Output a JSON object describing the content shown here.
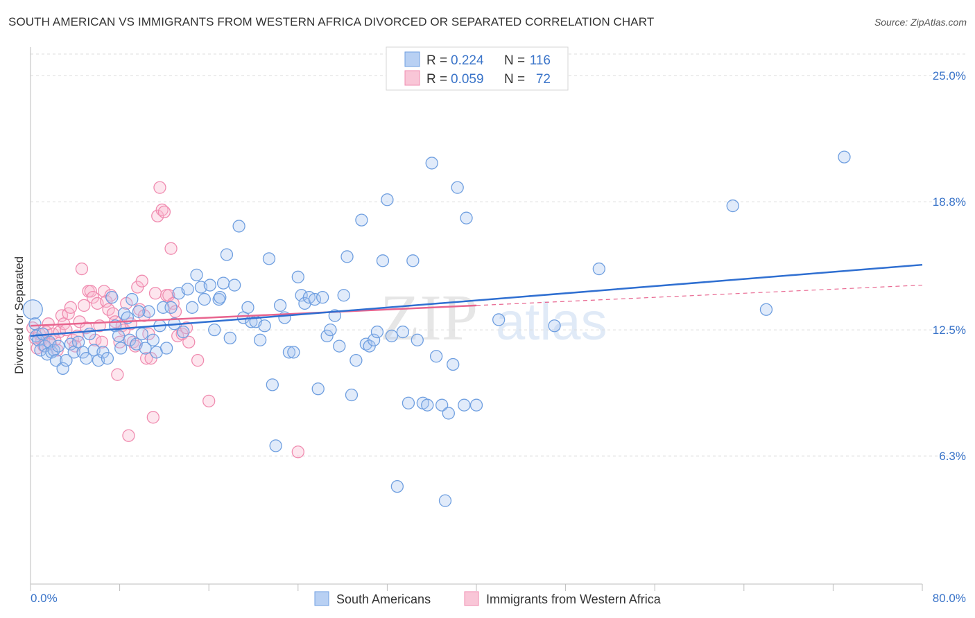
{
  "title": "SOUTH AMERICAN VS IMMIGRANTS FROM WESTERN AFRICA DIVORCED OR SEPARATED CORRELATION CHART",
  "source": "Source: ZipAtlas.com",
  "colors": {
    "blue": "#6f9fe0",
    "blue_line": "#2f6fd1",
    "pink": "#f08cb0",
    "pink_line": "#e8658f",
    "tick": "#3a74c9"
  },
  "legend": {
    "r_label": "R =",
    "n_label": "N =",
    "rows": [
      {
        "r": "0.224",
        "n": "116"
      },
      {
        "r": "0.059",
        "n": "72"
      }
    ]
  },
  "chart_data": {
    "type": "scatter",
    "title": "SOUTH AMERICAN VS IMMIGRANTS FROM WESTERN AFRICA DIVORCED OR SEPARATED CORRELATION CHART",
    "ylabel": "Divorced or Separated",
    "xlabel": "",
    "xlim": [
      0,
      80
    ],
    "ylim": [
      0,
      26.2
    ],
    "x_tick_labels": [
      "0.0%",
      "80.0%"
    ],
    "y_ticks": [
      {
        "value": 25.0,
        "label": "25.0%"
      },
      {
        "value": 18.8,
        "label": "18.8%"
      },
      {
        "value": 12.5,
        "label": "12.5%"
      },
      {
        "value": 6.3,
        "label": "6.3%"
      }
    ],
    "series": [
      {
        "name": "South Americans",
        "color": "#6f9fe0",
        "trend": {
          "x": [
            0,
            80
          ],
          "y": [
            12.2,
            15.7
          ]
        },
        "points": [
          [
            0.2,
            13.5
          ],
          [
            0.4,
            12.8
          ],
          [
            0.5,
            12.2
          ],
          [
            0.7,
            12.0
          ],
          [
            0.9,
            11.5
          ],
          [
            1.1,
            12.3
          ],
          [
            1.3,
            11.7
          ],
          [
            1.5,
            11.3
          ],
          [
            1.7,
            11.9
          ],
          [
            1.9,
            11.4
          ],
          [
            2.1,
            11.5
          ],
          [
            2.3,
            11.0
          ],
          [
            2.5,
            11.7
          ],
          [
            2.9,
            10.6
          ],
          [
            3.2,
            11.0
          ],
          [
            3.6,
            11.8
          ],
          [
            3.9,
            11.4
          ],
          [
            4.3,
            11.9
          ],
          [
            4.7,
            11.4
          ],
          [
            5.0,
            11.1
          ],
          [
            5.3,
            12.3
          ],
          [
            5.7,
            11.5
          ],
          [
            6.1,
            11.0
          ],
          [
            6.5,
            11.4
          ],
          [
            6.9,
            11.1
          ],
          [
            7.3,
            14.1
          ],
          [
            7.6,
            12.7
          ],
          [
            7.9,
            12.2
          ],
          [
            8.1,
            11.6
          ],
          [
            8.4,
            13.3
          ],
          [
            8.7,
            13.1
          ],
          [
            8.9,
            12.0
          ],
          [
            9.1,
            14.0
          ],
          [
            9.5,
            11.8
          ],
          [
            10.0,
            12.3
          ],
          [
            10.3,
            11.6
          ],
          [
            10.6,
            13.4
          ],
          [
            11.0,
            12.0
          ],
          [
            11.3,
            11.4
          ],
          [
            11.6,
            12.7
          ],
          [
            11.9,
            13.6
          ],
          [
            12.2,
            11.6
          ],
          [
            12.6,
            13.6
          ],
          [
            12.9,
            12.8
          ],
          [
            13.3,
            14.3
          ],
          [
            13.7,
            12.4
          ],
          [
            14.1,
            14.5
          ],
          [
            14.5,
            13.6
          ],
          [
            14.9,
            15.2
          ],
          [
            15.3,
            14.6
          ],
          [
            15.6,
            14.0
          ],
          [
            16.1,
            14.7
          ],
          [
            16.5,
            12.5
          ],
          [
            16.9,
            14.0
          ],
          [
            17.3,
            14.8
          ],
          [
            17.6,
            16.2
          ],
          [
            17.9,
            12.1
          ],
          [
            18.3,
            14.7
          ],
          [
            18.7,
            17.6
          ],
          [
            19.1,
            13.1
          ],
          [
            19.5,
            13.6
          ],
          [
            19.8,
            12.9
          ],
          [
            20.2,
            12.9
          ],
          [
            20.6,
            12.0
          ],
          [
            21.0,
            12.7
          ],
          [
            21.4,
            16.0
          ],
          [
            21.7,
            9.8
          ],
          [
            22.0,
            6.8
          ],
          [
            22.4,
            13.7
          ],
          [
            22.8,
            13.1
          ],
          [
            23.2,
            11.4
          ],
          [
            23.6,
            11.4
          ],
          [
            24.0,
            15.1
          ],
          [
            24.3,
            14.2
          ],
          [
            24.6,
            13.8
          ],
          [
            25.0,
            14.1
          ],
          [
            25.5,
            14.0
          ],
          [
            25.8,
            9.6
          ],
          [
            26.2,
            14.1
          ],
          [
            26.6,
            12.2
          ],
          [
            26.9,
            12.5
          ],
          [
            27.3,
            13.2
          ],
          [
            27.7,
            11.7
          ],
          [
            28.1,
            14.2
          ],
          [
            28.4,
            16.1
          ],
          [
            28.8,
            9.3
          ],
          [
            29.2,
            11.0
          ],
          [
            29.7,
            17.9
          ],
          [
            30.1,
            11.8
          ],
          [
            30.4,
            11.7
          ],
          [
            30.8,
            12.0
          ],
          [
            31.1,
            12.4
          ],
          [
            31.6,
            15.9
          ],
          [
            32.0,
            18.9
          ],
          [
            32.4,
            12.2
          ],
          [
            32.9,
            4.8
          ],
          [
            33.4,
            12.4
          ],
          [
            33.9,
            8.9
          ],
          [
            34.3,
            15.9
          ],
          [
            34.7,
            12.0
          ],
          [
            35.2,
            8.9
          ],
          [
            35.6,
            8.8
          ],
          [
            36.0,
            20.7
          ],
          [
            36.4,
            11.2
          ],
          [
            36.9,
            8.8
          ],
          [
            37.2,
            4.1
          ],
          [
            37.5,
            8.4
          ],
          [
            37.9,
            10.8
          ],
          [
            38.3,
            19.5
          ],
          [
            38.9,
            8.8
          ],
          [
            39.1,
            18.0
          ],
          [
            40.0,
            8.8
          ],
          [
            42.0,
            13.0
          ],
          [
            47.0,
            12.7
          ],
          [
            51.0,
            15.5
          ],
          [
            63.0,
            18.6
          ],
          [
            66.0,
            13.5
          ],
          [
            73.0,
            21.0
          ],
          [
            17.0,
            14.1
          ],
          [
            9.7,
            13.4
          ]
        ]
      },
      {
        "name": "Immigrants from Western Africa",
        "color": "#f08cb0",
        "trend": {
          "x": [
            0,
            40
          ],
          "y": [
            12.7,
            13.7
          ]
        },
        "trend_dashed": {
          "x": [
            40,
            80
          ],
          "y": [
            13.7,
            14.7
          ]
        },
        "points": [
          [
            0.2,
            12.6
          ],
          [
            0.4,
            12.1
          ],
          [
            0.6,
            11.6
          ],
          [
            0.8,
            12.3
          ],
          [
            1.0,
            12.0
          ],
          [
            1.2,
            11.7
          ],
          [
            1.4,
            12.4
          ],
          [
            1.6,
            12.8
          ],
          [
            1.8,
            11.8
          ],
          [
            2.0,
            12.3
          ],
          [
            2.2,
            12.0
          ],
          [
            2.4,
            11.5
          ],
          [
            2.6,
            12.4
          ],
          [
            2.8,
            13.2
          ],
          [
            3.0,
            12.8
          ],
          [
            3.2,
            12.5
          ],
          [
            3.4,
            13.3
          ],
          [
            3.6,
            13.6
          ],
          [
            3.8,
            12.0
          ],
          [
            4.0,
            11.7
          ],
          [
            4.2,
            12.2
          ],
          [
            4.4,
            12.9
          ],
          [
            4.6,
            15.5
          ],
          [
            4.8,
            13.7
          ],
          [
            5.0,
            12.6
          ],
          [
            5.2,
            14.4
          ],
          [
            5.4,
            14.4
          ],
          [
            5.6,
            14.1
          ],
          [
            5.8,
            12.0
          ],
          [
            6.0,
            13.8
          ],
          [
            6.2,
            12.7
          ],
          [
            6.4,
            11.9
          ],
          [
            6.6,
            14.4
          ],
          [
            6.8,
            13.9
          ],
          [
            7.0,
            13.5
          ],
          [
            7.2,
            14.2
          ],
          [
            7.4,
            13.3
          ],
          [
            7.6,
            12.9
          ],
          [
            7.8,
            10.3
          ],
          [
            8.0,
            11.9
          ],
          [
            8.2,
            12.7
          ],
          [
            8.4,
            12.5
          ],
          [
            8.6,
            13.8
          ],
          [
            8.8,
            7.3
          ],
          [
            9.0,
            12.8
          ],
          [
            9.2,
            11.9
          ],
          [
            9.4,
            11.7
          ],
          [
            9.6,
            14.6
          ],
          [
            9.8,
            13.5
          ],
          [
            10.0,
            14.9
          ],
          [
            10.2,
            13.2
          ],
          [
            10.4,
            11.1
          ],
          [
            10.6,
            12.3
          ],
          [
            10.8,
            11.1
          ],
          [
            11.0,
            8.2
          ],
          [
            11.2,
            14.3
          ],
          [
            11.4,
            18.1
          ],
          [
            11.6,
            19.5
          ],
          [
            11.8,
            18.4
          ],
          [
            12.0,
            18.3
          ],
          [
            12.2,
            14.2
          ],
          [
            12.4,
            14.2
          ],
          [
            12.6,
            16.5
          ],
          [
            12.8,
            13.8
          ],
          [
            13.0,
            13.4
          ],
          [
            13.2,
            12.2
          ],
          [
            13.6,
            12.3
          ],
          [
            14.0,
            12.6
          ],
          [
            14.2,
            11.9
          ],
          [
            15.0,
            11.0
          ],
          [
            16.0,
            9.0
          ],
          [
            24.0,
            6.5
          ]
        ]
      }
    ]
  },
  "bottom_legend": [
    "South Americans",
    "Immigrants from Western Africa"
  ],
  "watermark": {
    "zip": "ZIP",
    "atlas": "atlas"
  }
}
